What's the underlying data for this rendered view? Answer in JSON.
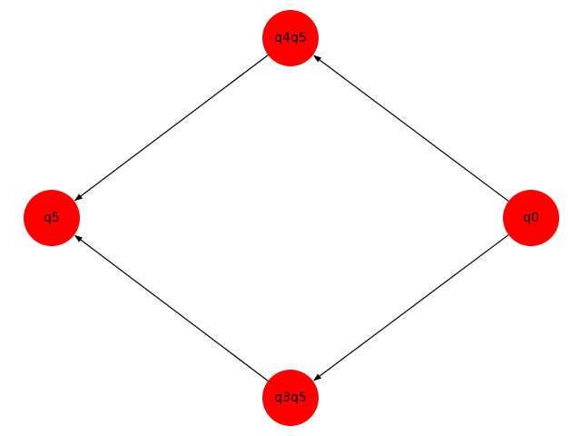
{
  "graph": {
    "node_color": "#ff0000",
    "edge_color": "#000000",
    "directed": true,
    "nodes": [
      {
        "id": "q0",
        "label": "q0"
      },
      {
        "id": "q4q5",
        "label": "q4q5"
      },
      {
        "id": "q3q5",
        "label": "q3q5"
      },
      {
        "id": "q5",
        "label": "q5"
      }
    ],
    "edges": [
      {
        "from": "q0",
        "to": "q4q5"
      },
      {
        "from": "q0",
        "to": "q3q5"
      },
      {
        "from": "q4q5",
        "to": "q5"
      },
      {
        "from": "q3q5",
        "to": "q5"
      }
    ]
  }
}
